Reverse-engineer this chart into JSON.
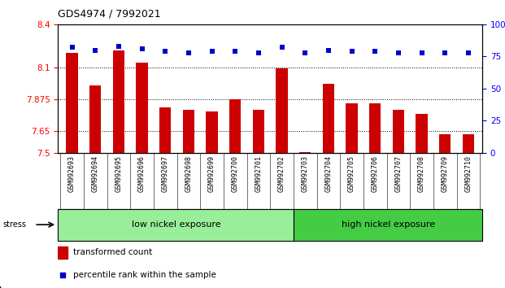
{
  "title": "GDS4974 / 7992021",
  "categories": [
    "GSM992693",
    "GSM992694",
    "GSM992695",
    "GSM992696",
    "GSM992697",
    "GSM992698",
    "GSM992699",
    "GSM992700",
    "GSM992701",
    "GSM992702",
    "GSM992703",
    "GSM992704",
    "GSM992705",
    "GSM992706",
    "GSM992707",
    "GSM992708",
    "GSM992709",
    "GSM992710"
  ],
  "bar_values": [
    8.2,
    7.97,
    8.22,
    8.13,
    7.82,
    7.8,
    7.79,
    7.875,
    7.8,
    8.09,
    7.505,
    7.985,
    7.845,
    7.845,
    7.8,
    7.77,
    7.63,
    7.63
  ],
  "dot_values": [
    82,
    80,
    83,
    81,
    79,
    78,
    79,
    79,
    78,
    82,
    78,
    80,
    79,
    79,
    78,
    78,
    78,
    78
  ],
  "ylim_left": [
    7.5,
    8.4
  ],
  "ylim_right": [
    0,
    100
  ],
  "yticks_left": [
    7.5,
    7.65,
    7.875,
    8.1,
    8.4
  ],
  "yticks_right": [
    0,
    25,
    50,
    75,
    100
  ],
  "bar_color": "#cc0000",
  "dot_color": "#0000cc",
  "bar_bottom": 7.5,
  "group1_label": "low nickel exposure",
  "group2_label": "high nickel exposure",
  "low_count": 10,
  "high_count": 8,
  "group1_color": "#99ee99",
  "group2_color": "#44cc44",
  "stress_label": "stress",
  "legend_bar_label": "transformed count",
  "legend_dot_label": "percentile rank within the sample",
  "tick_bg_color": "#cccccc",
  "grid_yticks": [
    7.65,
    7.875,
    8.1
  ]
}
